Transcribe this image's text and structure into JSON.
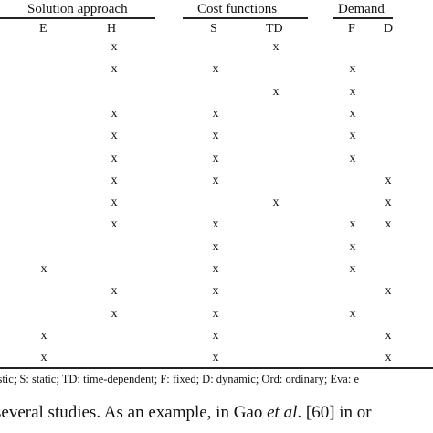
{
  "headers": {
    "solution_approach": "Solution approach",
    "cost_functions": "Cost functions",
    "demand": "Demand"
  },
  "columns": [
    "E",
    "H",
    "S",
    "TD",
    "F",
    "D"
  ],
  "rows": [
    [
      "",
      "x",
      "",
      "x",
      "",
      ""
    ],
    [
      "",
      "x",
      "x",
      "",
      "x",
      ""
    ],
    [
      "",
      "",
      "",
      "x",
      "x",
      ""
    ],
    [
      "",
      "x",
      "x",
      "",
      "x",
      ""
    ],
    [
      "",
      "x",
      "x",
      "",
      "x",
      ""
    ],
    [
      "",
      "x",
      "x",
      "",
      "x",
      ""
    ],
    [
      "",
      "x",
      "x",
      "",
      "",
      "x"
    ],
    [
      "",
      "x",
      "",
      "x",
      "",
      "x"
    ],
    [
      "",
      "x",
      "x",
      "",
      "x",
      "x"
    ],
    [
      "",
      "",
      "x",
      "",
      "x",
      ""
    ],
    [
      "x",
      "",
      "x",
      "",
      "x",
      ""
    ],
    [
      "",
      "x",
      "x",
      "",
      "",
      "x"
    ],
    [
      "",
      "x",
      "x",
      "",
      "x",
      ""
    ],
    [
      "x",
      "",
      "x",
      "",
      "",
      "x"
    ],
    [
      "x",
      "",
      "x",
      "",
      "",
      "x"
    ]
  ],
  "caption": "istic; S: static; TD: time-dependent; F: fixed; D: dynamic; Ord: ordinary; Eva: e",
  "body_text": {
    "before": " several studies. As an example, in Gao ",
    "etal": "et al",
    "after": ". [60] in or"
  }
}
